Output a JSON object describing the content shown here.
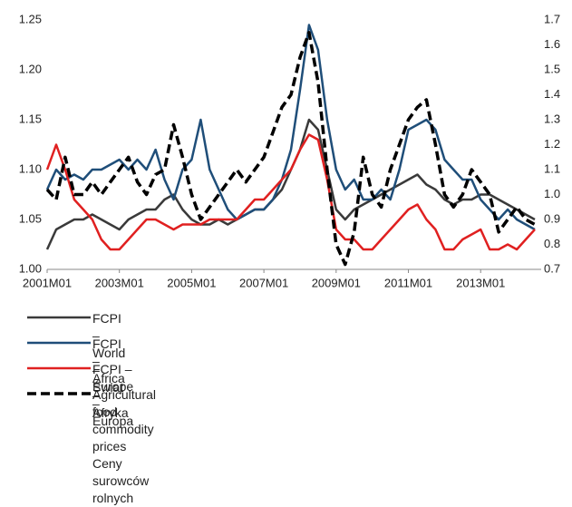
{
  "chart_data": {
    "type": "line",
    "categories": [
      "2001M01",
      null,
      null,
      null,
      null,
      null,
      null,
      null,
      "2003M01",
      null,
      null,
      null,
      null,
      null,
      null,
      null,
      "2005M01",
      null,
      null,
      null,
      null,
      null,
      null,
      null,
      "2007M01",
      null,
      null,
      null,
      null,
      null,
      null,
      null,
      "2009M01",
      null,
      null,
      null,
      null,
      null,
      null,
      null,
      "2011M01",
      null,
      null,
      null,
      null,
      null,
      null,
      null,
      "2013M01",
      null,
      null,
      null,
      null,
      null,
      null
    ],
    "series": [
      {
        "name": "FCPI – World – Świat",
        "color": "#3a3a3a",
        "values": [
          1.02,
          1.04,
          1.045,
          1.05,
          1.05,
          1.055,
          1.05,
          1.045,
          1.04,
          1.05,
          1.055,
          1.06,
          1.06,
          1.07,
          1.075,
          1.06,
          1.05,
          1.045,
          1.045,
          1.05,
          1.045,
          1.05,
          1.055,
          1.06,
          1.06,
          1.07,
          1.08,
          1.1,
          1.12,
          1.15,
          1.14,
          1.1,
          1.06,
          1.05,
          1.06,
          1.065,
          1.07,
          1.075,
          1.08,
          1.085,
          1.09,
          1.095,
          1.085,
          1.08,
          1.07,
          1.065,
          1.07,
          1.07,
          1.075,
          1.075,
          1.07,
          1.065,
          1.06,
          1.055,
          1.05
        ]
      },
      {
        "name": "FCPI – Africa – Afryka",
        "color": "#1f4e79",
        "values": [
          1.08,
          1.1,
          1.09,
          1.095,
          1.09,
          1.1,
          1.1,
          1.105,
          1.11,
          1.1,
          1.11,
          1.1,
          1.12,
          1.09,
          1.07,
          1.1,
          1.11,
          1.15,
          1.1,
          1.08,
          1.06,
          1.05,
          1.055,
          1.06,
          1.06,
          1.07,
          1.09,
          1.12,
          1.18,
          1.245,
          1.22,
          1.15,
          1.1,
          1.08,
          1.09,
          1.07,
          1.07,
          1.08,
          1.07,
          1.1,
          1.14,
          1.145,
          1.15,
          1.14,
          1.11,
          1.1,
          1.09,
          1.09,
          1.07,
          1.06,
          1.05,
          1.06,
          1.05,
          1.045,
          1.04
        ]
      },
      {
        "name": "FCPI – Europe – Europa",
        "color": "#e02020",
        "values": [
          1.1,
          1.125,
          1.1,
          1.07,
          1.06,
          1.05,
          1.03,
          1.02,
          1.02,
          1.03,
          1.04,
          1.05,
          1.05,
          1.045,
          1.04,
          1.045,
          1.045,
          1.045,
          1.05,
          1.05,
          1.05,
          1.05,
          1.06,
          1.07,
          1.07,
          1.08,
          1.09,
          1.1,
          1.12,
          1.135,
          1.13,
          1.09,
          1.04,
          1.03,
          1.03,
          1.02,
          1.02,
          1.03,
          1.04,
          1.05,
          1.06,
          1.065,
          1.05,
          1.04,
          1.02,
          1.02,
          1.03,
          1.035,
          1.04,
          1.02,
          1.02,
          1.025,
          1.02,
          1.03,
          1.04
        ]
      },
      {
        "name": "Agricultural food commodity prices\nCeny surowców rolnych",
        "color": "#000000",
        "dashed": true,
        "axis": "y2",
        "values": [
          1.02,
          0.98,
          1.15,
          1.0,
          1.0,
          1.05,
          1.0,
          1.05,
          1.1,
          1.15,
          1.05,
          1.0,
          1.08,
          1.1,
          1.28,
          1.15,
          1.0,
          0.9,
          0.95,
          1.0,
          1.05,
          1.1,
          1.05,
          1.1,
          1.15,
          1.25,
          1.35,
          1.4,
          1.55,
          1.65,
          1.45,
          1.1,
          0.8,
          0.72,
          0.85,
          1.15,
          1.0,
          0.95,
          1.1,
          1.2,
          1.3,
          1.35,
          1.38,
          1.2,
          1.0,
          0.95,
          1.0,
          1.1,
          1.05,
          1.0,
          0.85,
          0.9,
          0.95,
          0.9,
          0.88
        ]
      }
    ],
    "ylim": [
      1.0,
      1.25
    ],
    "yticks": [
      {
        "value": 1.0,
        "label": "1.00"
      },
      1.05,
      {
        "value": 1.1,
        "label": "1.10"
      },
      1.15,
      {
        "value": 1.2,
        "label": "1.20"
      },
      1.25
    ],
    "y2lim": [
      0.7,
      1.7
    ],
    "y2ticks": [
      0.7,
      0.8,
      0.9,
      {
        "value": 1.0,
        "label": "1.0"
      },
      1.1,
      1.2,
      1.3,
      1.4,
      1.5,
      1.6,
      1.7
    ],
    "grid": false,
    "legend": "bottom"
  }
}
